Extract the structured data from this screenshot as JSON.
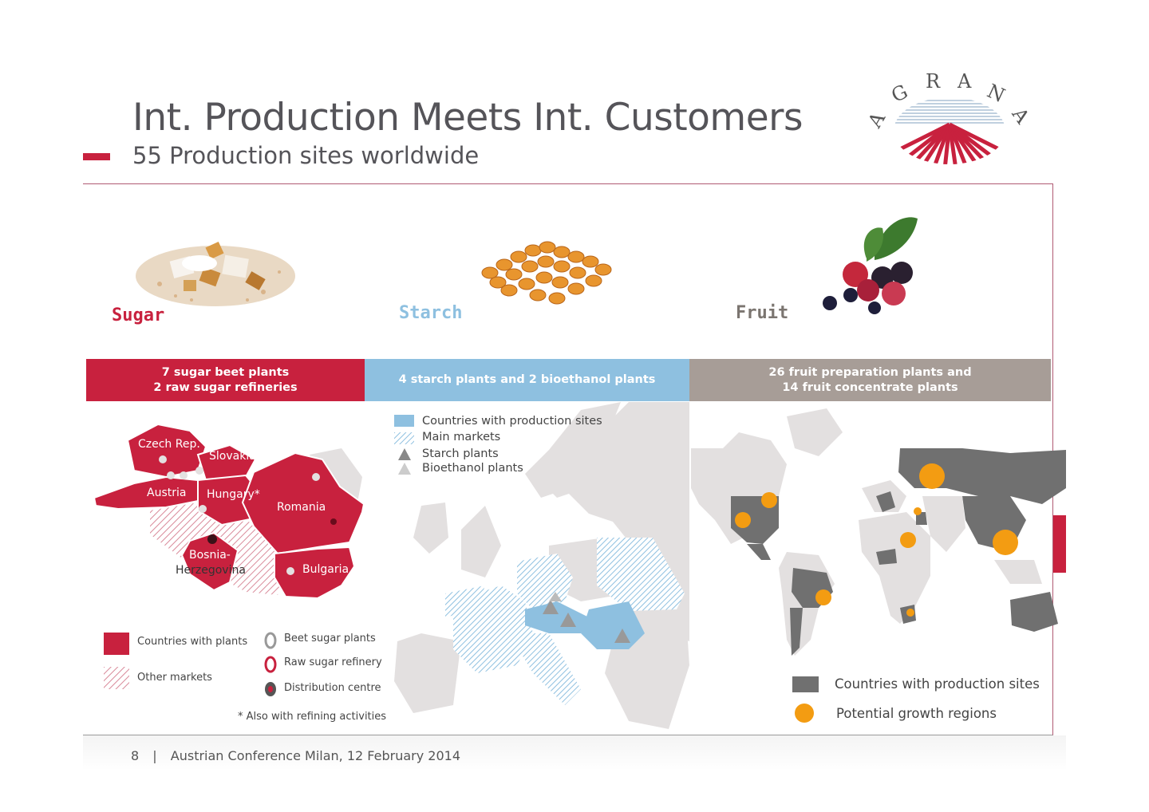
{
  "header": {
    "title": "Int. Production Meets Int. Customers",
    "subtitle": "55 Production sites worldwide",
    "accent_color": "#c8213e"
  },
  "logo": {
    "text": "AGRANA",
    "letters": [
      "A",
      "G",
      "R",
      "A",
      "N",
      "A"
    ]
  },
  "segments": {
    "sugar": {
      "label": "Sugar",
      "color": "#c8213e",
      "band_line1": "7 sugar beet plants",
      "band_line2": "2 raw sugar refineries"
    },
    "starch": {
      "label": "Starch",
      "color": "#8ec0e0",
      "band_line1": "4 starch plants and 2 bioethanol plants"
    },
    "fruit": {
      "label": "Fruit",
      "color": "#a79d97",
      "band_line1": "26 fruit preparation plants and",
      "band_line2": "14 fruit concentrate plants"
    }
  },
  "sugar_map": {
    "countries": [
      "Czech Rep.",
      "Slovakia",
      "Austria",
      "Hungary*",
      "Romania",
      "Bosnia-",
      "Herzegovina",
      "Bulgaria"
    ]
  },
  "sugar_legend": {
    "countries_with_plants": "Countries with plants",
    "other_markets": "Other markets",
    "beet_sugar_plants": "Beet sugar plants",
    "raw_sugar_refinery": "Raw sugar refinery",
    "distribution_centre": "Distribution centre",
    "footnote": "* Also with refining activities"
  },
  "starch_legend": {
    "countries_with_production_sites": "Countries with production sites",
    "main_markets": "Main markets",
    "starch_plants": "Starch plants",
    "bioethanol_plants": "Bioethanol plants"
  },
  "fruit_legend": {
    "countries_with_production_sites": "Countries with production sites",
    "potential_growth_regions": "Potential growth regions",
    "growth_color": "#f39c12",
    "country_color": "#707070"
  },
  "footer": {
    "page_number": "8",
    "separator": "|",
    "event": "Austrian Conference Milan, 12 February 2014"
  }
}
